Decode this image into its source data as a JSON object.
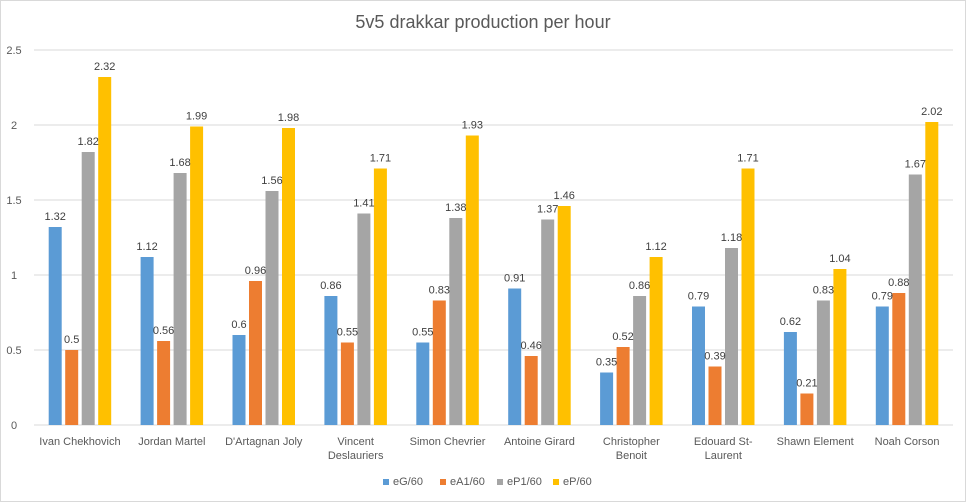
{
  "chart_data": {
    "type": "bar",
    "title": "5v5 drakkar production per hour",
    "xlabel": "",
    "ylabel": "",
    "ylim": [
      0,
      2.5
    ],
    "yticks": [
      0,
      0.5,
      1,
      1.5,
      2,
      2.5
    ],
    "ytick_labels": [
      "0",
      "0.5",
      "1",
      "1.5",
      "2",
      "2.5"
    ],
    "grid": true,
    "legend_position": "bottom",
    "categories": [
      [
        "Ivan Chekhovich"
      ],
      [
        "Jordan Martel"
      ],
      [
        "D'Artagnan Joly"
      ],
      [
        "Vincent",
        "Deslauriers"
      ],
      [
        "Simon Chevrier"
      ],
      [
        "Antoine Girard"
      ],
      [
        "Christopher",
        "Benoit"
      ],
      [
        "Edouard St-",
        "Laurent"
      ],
      [
        "Shawn Element"
      ],
      [
        "Noah Corson"
      ]
    ],
    "series": [
      {
        "name": "eG/60",
        "color": "#5B9BD5",
        "values": [
          1.32,
          1.12,
          0.6,
          0.86,
          0.55,
          0.91,
          0.35,
          0.79,
          0.62,
          0.79
        ],
        "labels": [
          "1.32",
          "1.12",
          "0.6",
          "0.86",
          "0.55",
          "0.91",
          "0.35",
          "0.79",
          "0.62",
          "0.79"
        ]
      },
      {
        "name": "eA1/60",
        "color": "#ED7D31",
        "values": [
          0.5,
          0.56,
          0.96,
          0.55,
          0.83,
          0.46,
          0.52,
          0.39,
          0.21,
          0.88
        ],
        "labels": [
          "0.5",
          "0.56",
          "0.96",
          "0.55",
          "0.83",
          "0.46",
          "0.52",
          "0.39",
          "0.21",
          "0.88"
        ]
      },
      {
        "name": "eP1/60",
        "color": "#A5A5A5",
        "values": [
          1.82,
          1.68,
          1.56,
          1.41,
          1.38,
          1.37,
          0.86,
          1.18,
          0.83,
          1.67
        ],
        "labels": [
          "1.82",
          "1.68",
          "1.56",
          "1.41",
          "1.38",
          "1.37",
          "0.86",
          "1.18",
          "0.83",
          "1.67"
        ]
      },
      {
        "name": "eP/60",
        "color": "#FFC000",
        "values": [
          2.32,
          1.99,
          1.98,
          1.71,
          1.93,
          1.46,
          1.12,
          1.71,
          1.04,
          2.02
        ],
        "labels": [
          "2.32",
          "1.99",
          "1.98",
          "1.71",
          "1.93",
          "1.46",
          "1.12",
          "1.71",
          "1.04",
          "2.02"
        ]
      }
    ]
  }
}
